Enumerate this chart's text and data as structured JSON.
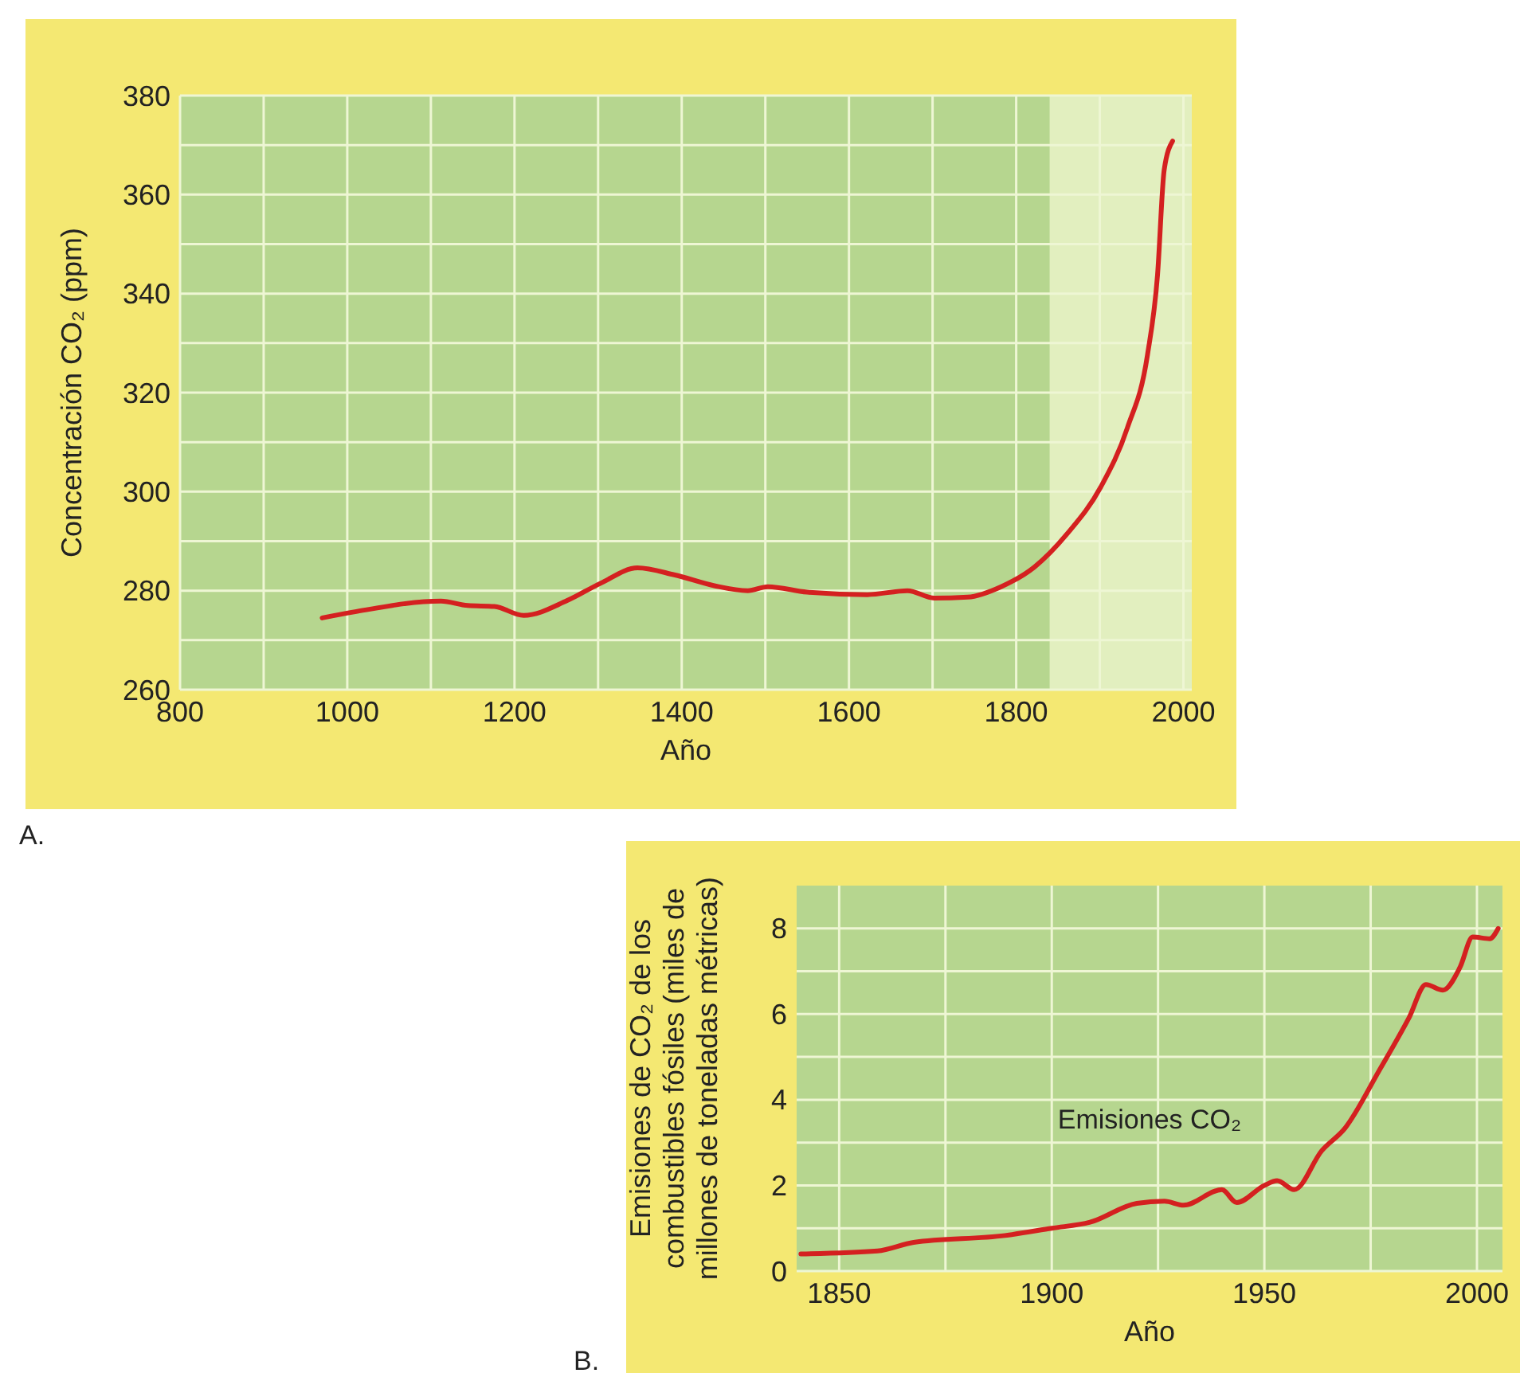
{
  "chart_data": [
    {
      "type": "line",
      "xlabel": "Año",
      "ylabel": "Concentración CO₂ (ppm)",
      "annotations": [
        "A."
      ],
      "grid": true,
      "xlim": [
        800,
        2010
      ],
      "ylim": [
        260,
        380
      ],
      "xticks": [
        800,
        {
          "value": 900,
          "label": null
        },
        1000,
        {
          "value": 1100,
          "label": null
        },
        1200,
        {
          "value": 1300,
          "label": null
        },
        1400,
        {
          "value": 1500,
          "label": null
        },
        1600,
        {
          "value": 1700,
          "label": null
        },
        1800,
        {
          "value": 1900,
          "label": null
        },
        2000
      ],
      "yticks": [
        260,
        {
          "value": 270,
          "label": null
        },
        280,
        {
          "value": 290,
          "label": null
        },
        300,
        {
          "value": 310,
          "label": null
        },
        320,
        {
          "value": 330,
          "label": null
        },
        340,
        {
          "value": 350,
          "label": null
        },
        360,
        {
          "value": 370,
          "label": null
        },
        380
      ],
      "bands": [
        {
          "axis": "x",
          "from": 1840,
          "to": 2010,
          "color": "#e2efbf"
        }
      ],
      "series": [
        {
          "color": "#d42020",
          "x": [
            970,
            1008,
            1112,
            1144,
            1176,
            1211,
            1263,
            1303,
            1347,
            1391,
            1439,
            1479,
            1503,
            1550,
            1622,
            1670,
            1702,
            1742,
            1782,
            1822,
            1861,
            1901,
            1933,
            1957,
            1969,
            1977,
            1987
          ],
          "values": [
            274.5,
            275.7,
            277.9,
            277,
            276.8,
            275,
            278,
            281.5,
            284.6,
            283.2,
            281,
            280,
            280.8,
            279.7,
            279.2,
            280,
            278.5,
            278.7,
            280.8,
            284.8,
            291.5,
            300.9,
            312.9,
            327.6,
            343.7,
            365,
            370.8
          ]
        }
      ]
    },
    {
      "type": "line",
      "xlabel": "Año",
      "ylabel": "Emisiones de CO₂ de los combustibles fósiles (miles de millones de toneladas métricas)",
      "annotations": [
        "B.",
        "Emisiones CO₂"
      ],
      "grid": true,
      "xlim": [
        1840,
        2006
      ],
      "ylim": [
        0,
        9
      ],
      "xticks": [
        1850,
        {
          "value": 1875,
          "label": null
        },
        1900,
        {
          "value": 1925,
          "label": null
        },
        1950,
        {
          "value": 1975,
          "label": null
        },
        2000
      ],
      "yticks": [
        0,
        {
          "value": 1,
          "label": null
        },
        2,
        {
          "value": 3,
          "label": null
        },
        4,
        {
          "value": 5,
          "label": null
        },
        6,
        {
          "value": 7,
          "label": null
        },
        8
      ],
      "series": [
        {
          "color": "#d42020",
          "x": [
            1841,
            1859,
            1867.5,
            1889,
            1900,
            1909,
            1920,
            1926.5,
            1931,
            1940,
            1943.5,
            1950,
            1953,
            1957,
            1963.5,
            1969,
            1977,
            1984,
            1988,
            1992,
            1996,
            1999,
            2003,
            2005
          ],
          "values": [
            0.4,
            0.47,
            0.67,
            0.83,
            1.0,
            1.14,
            1.58,
            1.63,
            1.54,
            1.9,
            1.6,
            2.0,
            2.11,
            1.9,
            2.81,
            3.34,
            4.68,
            5.91,
            6.69,
            6.56,
            7.09,
            7.8,
            7.76,
            8.0
          ]
        }
      ]
    }
  ]
}
